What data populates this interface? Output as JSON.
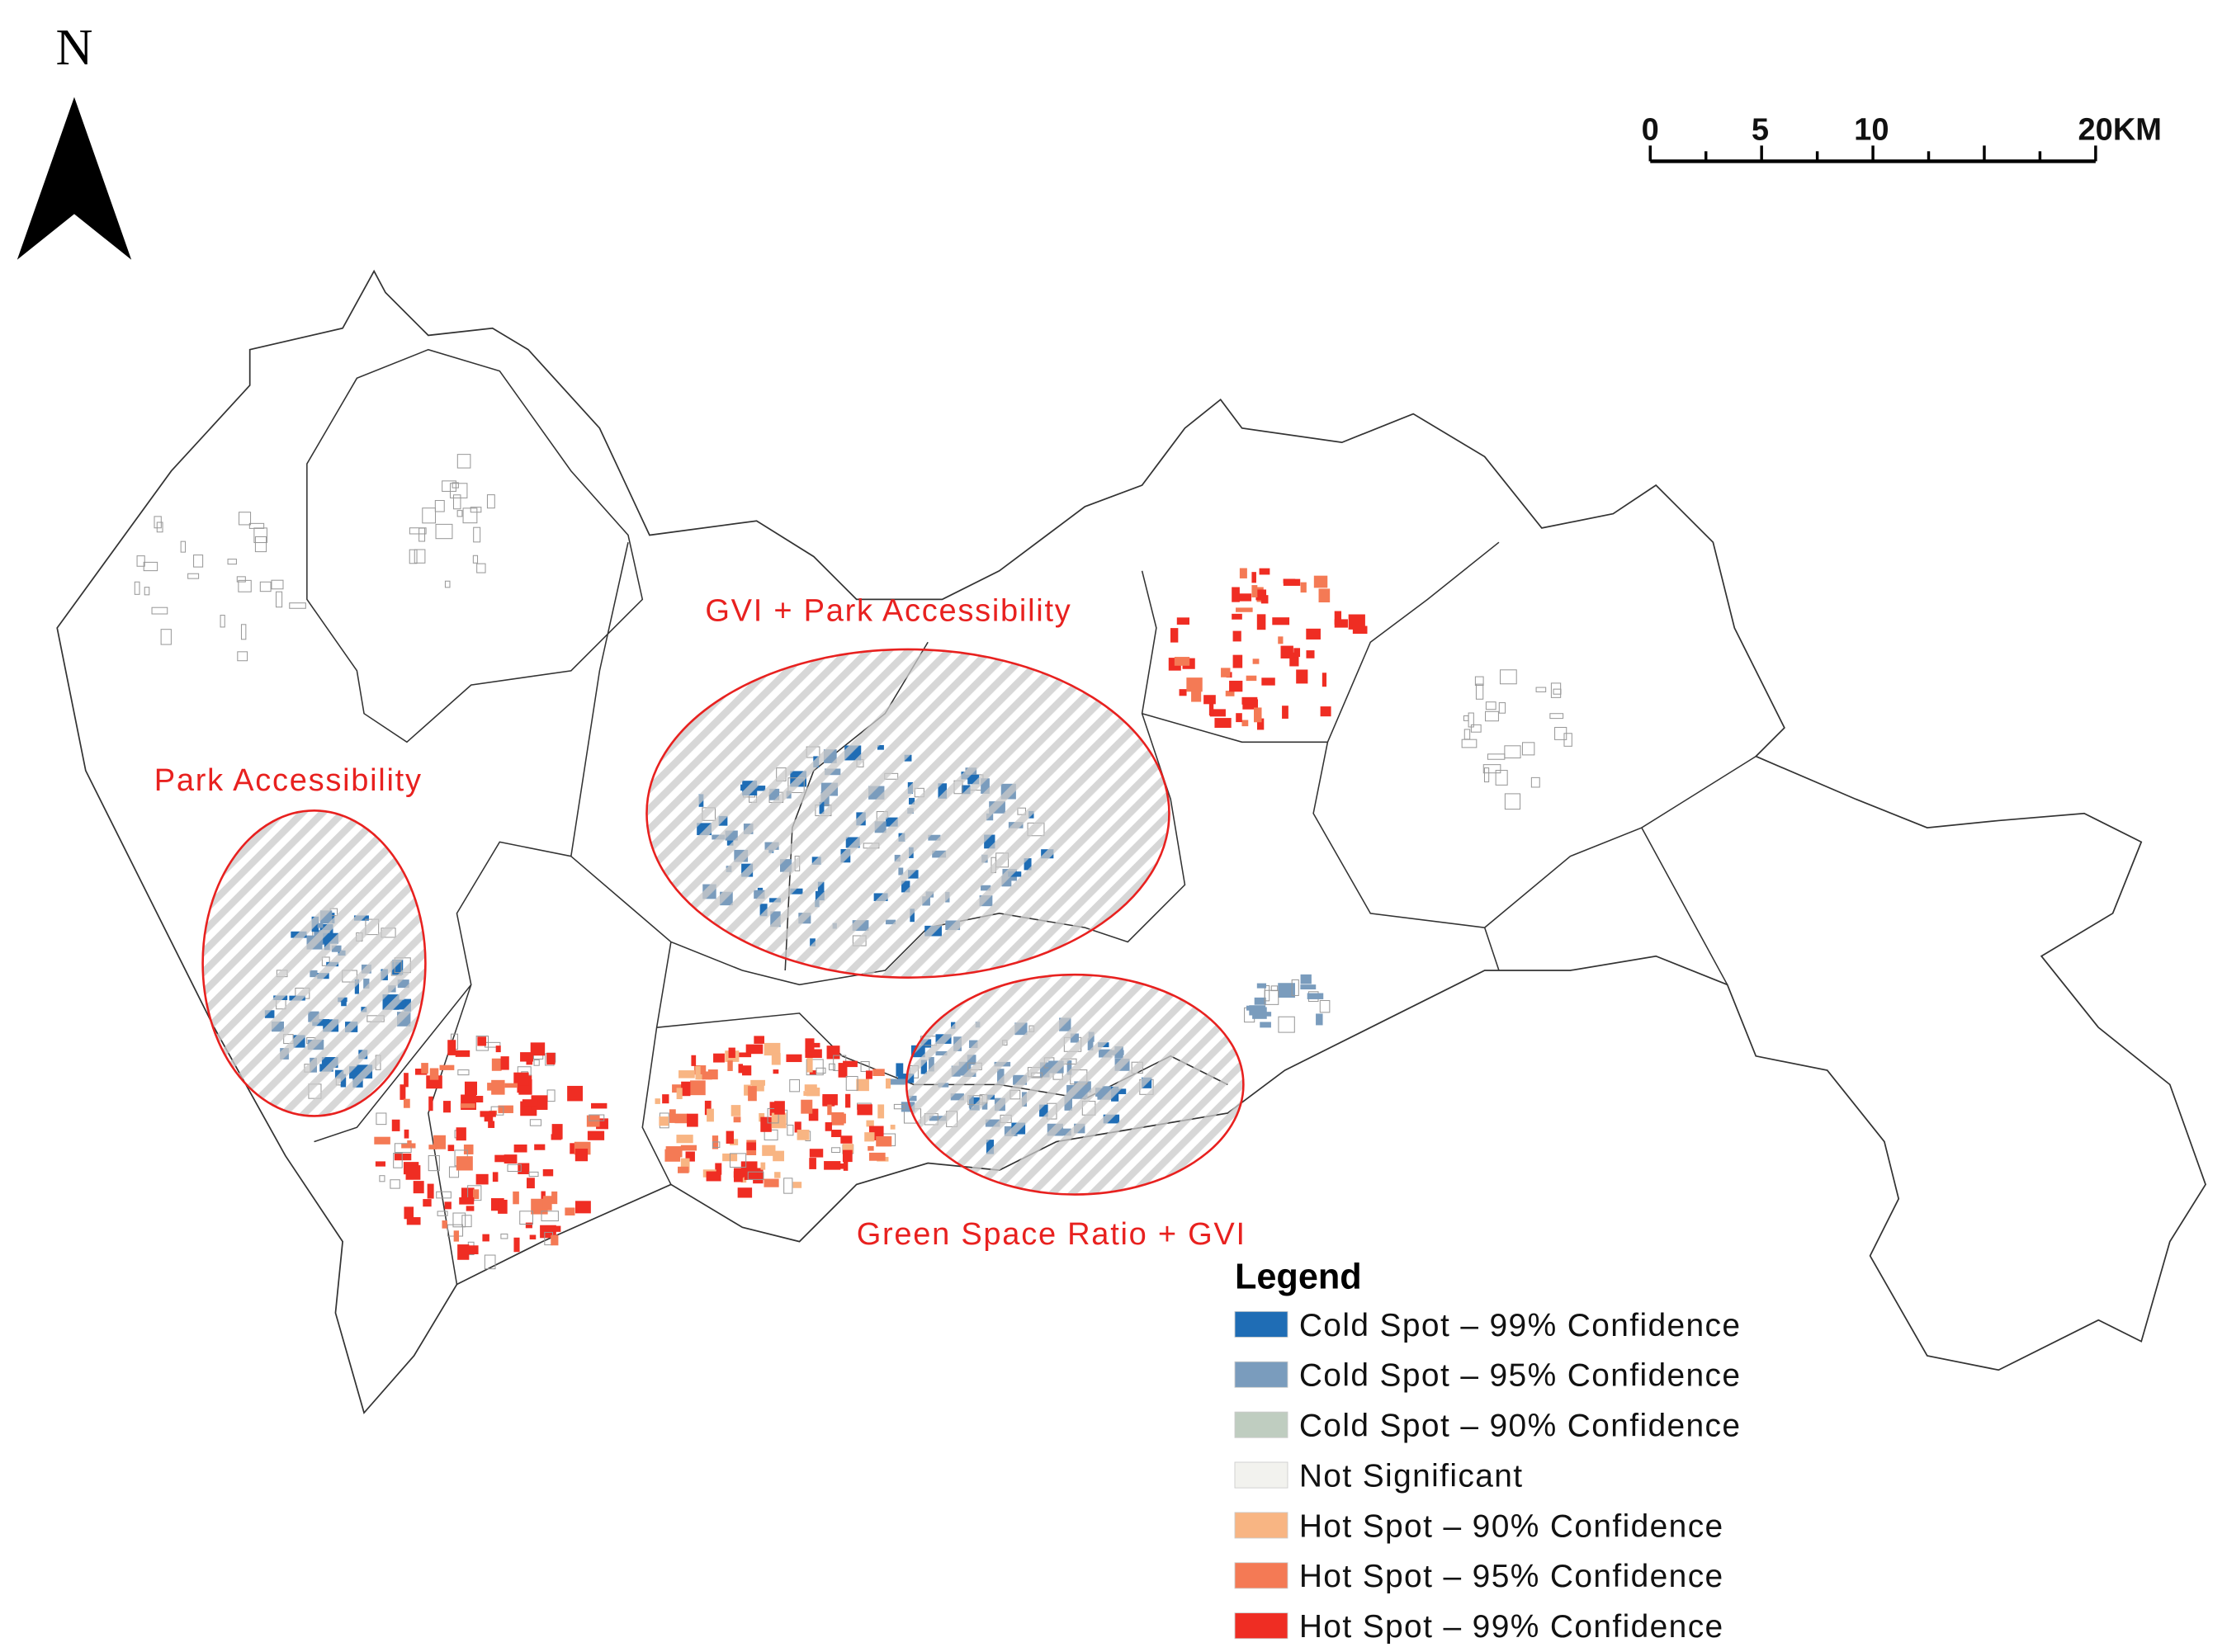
{
  "north_arrow": {
    "label": "N"
  },
  "scale_bar": {
    "labels": [
      "0",
      "5",
      "10",
      "20KM"
    ]
  },
  "annotations": [
    "Park Accessibility",
    "GVI + Park Accessibility",
    "Green Space Ratio + GVI"
  ],
  "legend": {
    "title": "Legend",
    "items": [
      {
        "label": "Cold Spot – 99% Confidence",
        "color": "#1f6db5"
      },
      {
        "label": "Cold Spot – 95% Confidence",
        "color": "#7a9cbd"
      },
      {
        "label": "Cold Spot – 90% Confidence",
        "color": "#bfcdc0"
      },
      {
        "label": "Not Significant",
        "color": "#f2f2ee"
      },
      {
        "label": "Hot Spot – 90% Confidence",
        "color": "#f8b583"
      },
      {
        "label": "Hot Spot – 95% Confidence",
        "color": "#f47a55"
      },
      {
        "label": "Hot Spot – 99% Confidence",
        "color": "#ef2d23"
      }
    ]
  }
}
